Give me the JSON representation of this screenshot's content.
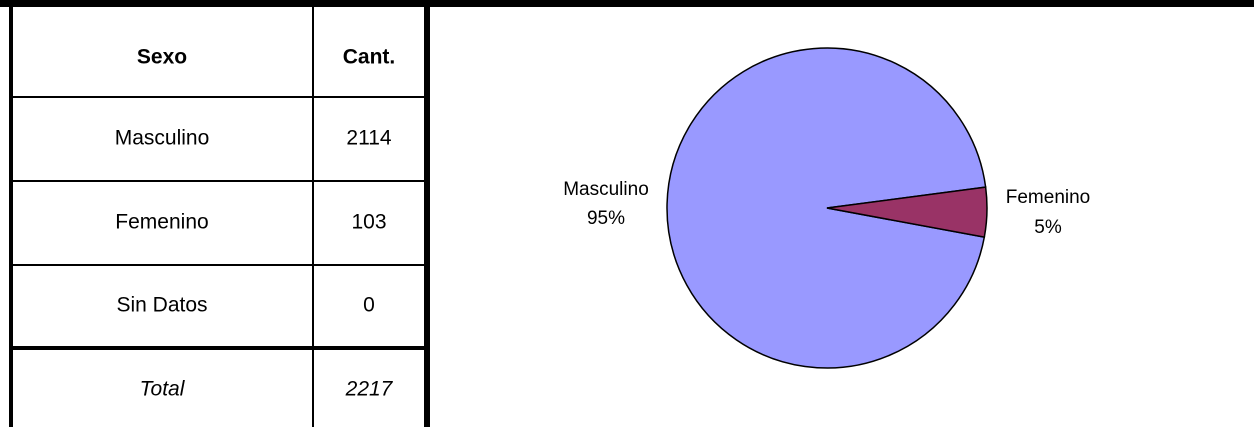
{
  "table": {
    "header": [
      "Sexo",
      "Cant."
    ],
    "rows": [
      [
        "Masculino",
        2114
      ],
      [
        "Femenino",
        103
      ],
      [
        "Sin Datos",
        0
      ]
    ],
    "total": [
      "Total",
      2217
    ]
  },
  "chart_data": {
    "type": "pie",
    "categories": [
      "Masculino",
      "Femenino"
    ],
    "values": [
      95,
      5
    ],
    "value_labels": [
      "95%",
      "5%"
    ],
    "colors": [
      "#9999ff",
      "#993366"
    ]
  }
}
